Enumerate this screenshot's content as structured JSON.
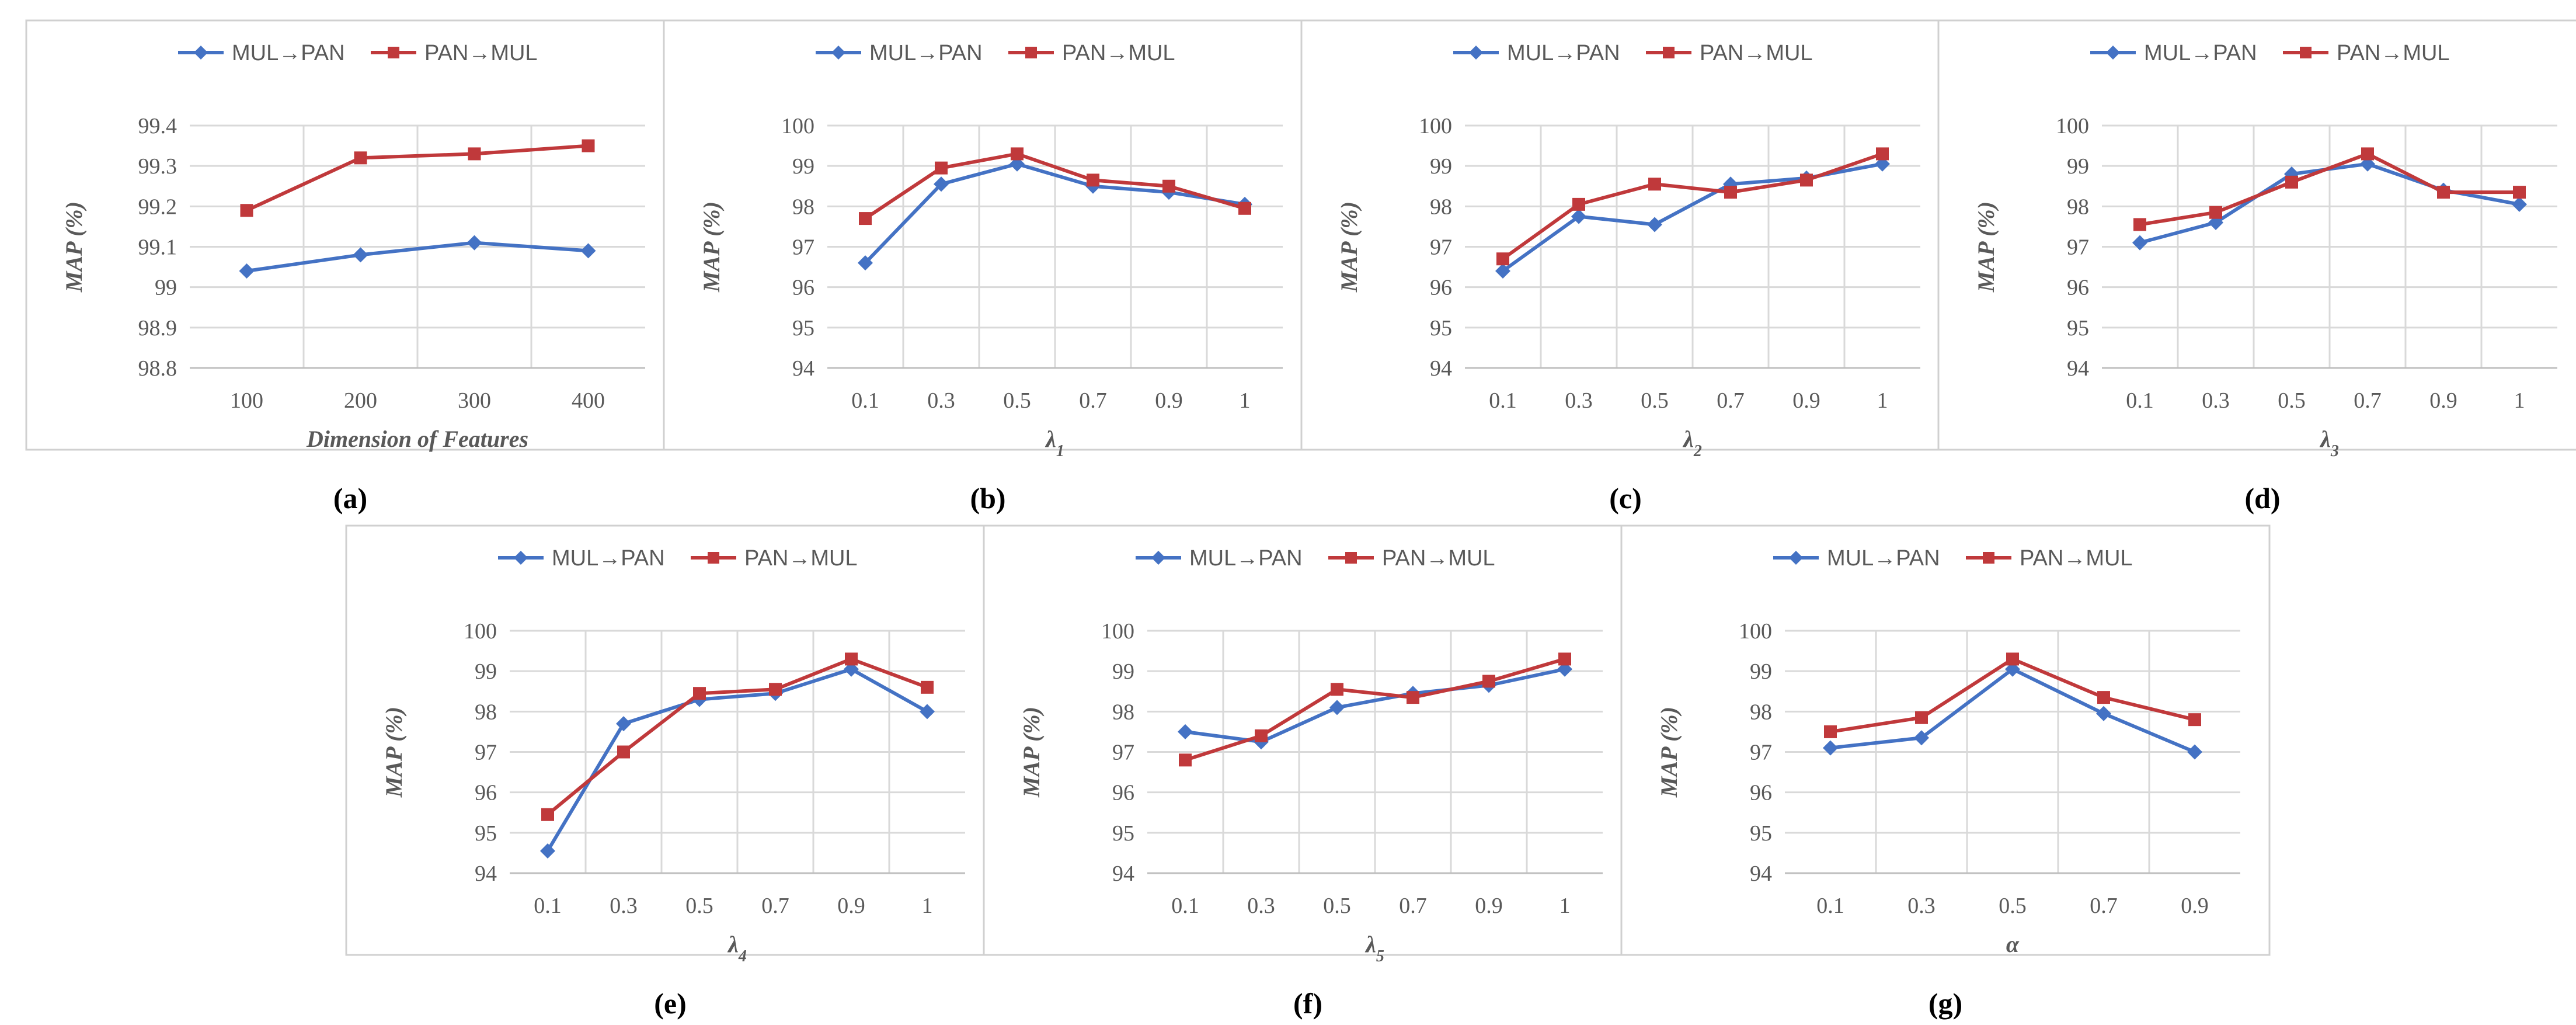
{
  "colors": {
    "series_1": "#4472C4",
    "series_2": "#C0393B"
  },
  "chart_data": [
    {
      "type": "line",
      "caption": "(a)",
      "xlabel": "Dimension of Features",
      "ylabel": "MAP (%)",
      "x": [
        "100",
        "200",
        "300",
        "400"
      ],
      "ylim": [
        98.8,
        99.4
      ],
      "ytick_step": 0.1,
      "yticks": [
        "98.8",
        "98.9",
        "99",
        "99.1",
        "99.2",
        "99.3",
        "99.4"
      ],
      "series": [
        {
          "name": "MUL→PAN",
          "values": [
            99.04,
            99.08,
            99.11,
            99.09
          ]
        },
        {
          "name": "PAN→MUL",
          "values": [
            99.19,
            99.32,
            99.33,
            99.35
          ]
        }
      ]
    },
    {
      "type": "line",
      "caption": "(b)",
      "xlabel": "λ",
      "xlabel_sub": "1",
      "ylabel": "MAP (%)",
      "x": [
        "0.1",
        "0.3",
        "0.5",
        "0.7",
        "0.9",
        "1"
      ],
      "ylim": [
        94,
        100
      ],
      "ytick_step": 1,
      "yticks": [
        "94",
        "95",
        "96",
        "97",
        "98",
        "99",
        "100"
      ],
      "series": [
        {
          "name": "MUL→PAN",
          "values": [
            96.6,
            98.55,
            99.05,
            98.5,
            98.35,
            98.05
          ]
        },
        {
          "name": "PAN→MUL",
          "values": [
            97.7,
            98.95,
            99.3,
            98.65,
            98.5,
            97.95
          ]
        }
      ]
    },
    {
      "type": "line",
      "caption": "(c)",
      "xlabel": "λ",
      "xlabel_sub": "2",
      "ylabel": "MAP (%)",
      "x": [
        "0.1",
        "0.3",
        "0.5",
        "0.7",
        "0.9",
        "1"
      ],
      "ylim": [
        94,
        100
      ],
      "ytick_step": 1,
      "yticks": [
        "94",
        "95",
        "96",
        "97",
        "98",
        "99",
        "100"
      ],
      "series": [
        {
          "name": "MUL→PAN",
          "values": [
            96.4,
            97.75,
            97.55,
            98.55,
            98.7,
            99.05
          ]
        },
        {
          "name": "PAN→MUL",
          "values": [
            96.7,
            98.05,
            98.55,
            98.35,
            98.65,
            99.3
          ]
        }
      ]
    },
    {
      "type": "line",
      "caption": "(d)",
      "xlabel": "λ",
      "xlabel_sub": "3",
      "ylabel": "MAP (%)",
      "x": [
        "0.1",
        "0.3",
        "0.5",
        "0.7",
        "0.9",
        "1"
      ],
      "ylim": [
        94,
        100
      ],
      "ytick_step": 1,
      "yticks": [
        "94",
        "95",
        "96",
        "97",
        "98",
        "99",
        "100"
      ],
      "series": [
        {
          "name": "MUL→PAN",
          "values": [
            97.1,
            97.6,
            98.8,
            99.05,
            98.4,
            98.05
          ]
        },
        {
          "name": "PAN→MUL",
          "values": [
            97.55,
            97.85,
            98.6,
            99.3,
            98.35,
            98.35
          ]
        }
      ]
    },
    {
      "type": "line",
      "caption": "(e)",
      "xlabel": "λ",
      "xlabel_sub": "4",
      "ylabel": "MAP (%)",
      "x": [
        "0.1",
        "0.3",
        "0.5",
        "0.7",
        "0.9",
        "1"
      ],
      "ylim": [
        94,
        100
      ],
      "ytick_step": 1,
      "yticks": [
        "94",
        "95",
        "96",
        "97",
        "98",
        "99",
        "100"
      ],
      "series": [
        {
          "name": "MUL→PAN",
          "values": [
            94.55,
            97.7,
            98.3,
            98.45,
            99.05,
            98.0
          ]
        },
        {
          "name": "PAN→MUL",
          "values": [
            95.45,
            97.0,
            98.45,
            98.55,
            99.3,
            98.6
          ]
        }
      ]
    },
    {
      "type": "line",
      "caption": "(f)",
      "xlabel": "λ",
      "xlabel_sub": "5",
      "ylabel": "MAP (%)",
      "x": [
        "0.1",
        "0.3",
        "0.5",
        "0.7",
        "0.9",
        "1"
      ],
      "ylim": [
        94,
        100
      ],
      "ytick_step": 1,
      "yticks": [
        "94",
        "95",
        "96",
        "97",
        "98",
        "99",
        "100"
      ],
      "series": [
        {
          "name": "MUL→PAN",
          "values": [
            97.5,
            97.25,
            98.1,
            98.45,
            98.65,
            99.05
          ]
        },
        {
          "name": "PAN→MUL",
          "values": [
            96.8,
            97.4,
            98.55,
            98.35,
            98.75,
            99.3
          ]
        }
      ]
    },
    {
      "type": "line",
      "caption": "(g)",
      "xlabel": "α",
      "xlabel_sub": "",
      "ylabel": "MAP (%)",
      "x": [
        "0.1",
        "0.3",
        "0.5",
        "0.7",
        "0.9"
      ],
      "ylim": [
        94,
        100
      ],
      "ytick_step": 1,
      "yticks": [
        "94",
        "95",
        "96",
        "97",
        "98",
        "99",
        "100"
      ],
      "series": [
        {
          "name": "MUL→PAN",
          "values": [
            97.1,
            97.35,
            99.05,
            97.95,
            97.0
          ]
        },
        {
          "name": "PAN→MUL",
          "values": [
            97.5,
            97.85,
            99.3,
            98.35,
            97.8
          ]
        }
      ]
    }
  ]
}
